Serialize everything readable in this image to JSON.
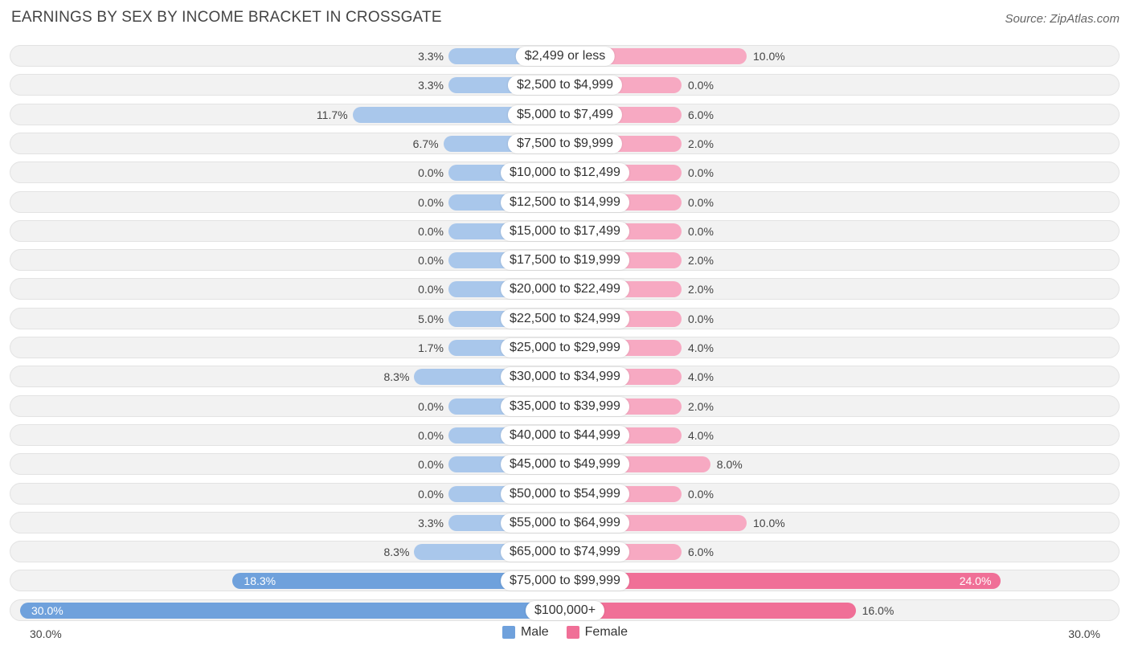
{
  "title": "EARNINGS BY SEX BY INCOME BRACKET IN CROSSGATE",
  "source": "Source: ZipAtlas.com",
  "colors": {
    "male_light": "#a9c7eb",
    "male_strong": "#6fa1dc",
    "female_light": "#f7a9c2",
    "female_strong": "#f06f97",
    "row_bg": "#f2f2f2"
  },
  "chart_data": {
    "type": "bar",
    "orientation": "horizontal-diverging",
    "title": "EARNINGS BY SEX BY INCOME BRACKET IN CROSSGATE",
    "xlim": [
      -30,
      30
    ],
    "axis_left_label": "30.0%",
    "axis_right_label": "30.0%",
    "categories": [
      "$2,499 or less",
      "$2,500 to $4,999",
      "$5,000 to $7,499",
      "$7,500 to $9,999",
      "$10,000 to $12,499",
      "$12,500 to $14,999",
      "$15,000 to $17,499",
      "$17,500 to $19,999",
      "$20,000 to $22,499",
      "$22,500 to $24,999",
      "$25,000 to $29,999",
      "$30,000 to $34,999",
      "$35,000 to $39,999",
      "$40,000 to $44,999",
      "$45,000 to $49,999",
      "$50,000 to $54,999",
      "$55,000 to $64,999",
      "$65,000 to $74,999",
      "$75,000 to $99,999",
      "$100,000+"
    ],
    "series": [
      {
        "name": "Male",
        "values": [
          3.3,
          3.3,
          11.7,
          6.7,
          0.0,
          0.0,
          0.0,
          0.0,
          0.0,
          5.0,
          1.7,
          8.3,
          0.0,
          0.0,
          0.0,
          0.0,
          3.3,
          8.3,
          18.3,
          30.0
        ],
        "labels": [
          "3.3%",
          "3.3%",
          "11.7%",
          "6.7%",
          "0.0%",
          "0.0%",
          "0.0%",
          "0.0%",
          "0.0%",
          "5.0%",
          "1.7%",
          "8.3%",
          "0.0%",
          "0.0%",
          "0.0%",
          "0.0%",
          "3.3%",
          "8.3%",
          "18.3%",
          "30.0%"
        ]
      },
      {
        "name": "Female",
        "values": [
          10.0,
          0.0,
          6.0,
          2.0,
          0.0,
          0.0,
          0.0,
          2.0,
          2.0,
          0.0,
          4.0,
          4.0,
          2.0,
          4.0,
          8.0,
          0.0,
          10.0,
          6.0,
          24.0,
          16.0
        ],
        "labels": [
          "10.0%",
          "0.0%",
          "6.0%",
          "2.0%",
          "0.0%",
          "0.0%",
          "0.0%",
          "2.0%",
          "2.0%",
          "0.0%",
          "4.0%",
          "4.0%",
          "2.0%",
          "4.0%",
          "8.0%",
          "0.0%",
          "10.0%",
          "6.0%",
          "24.0%",
          "16.0%"
        ]
      }
    ],
    "legend": [
      "Male",
      "Female"
    ],
    "legend_position": "bottom-center"
  }
}
